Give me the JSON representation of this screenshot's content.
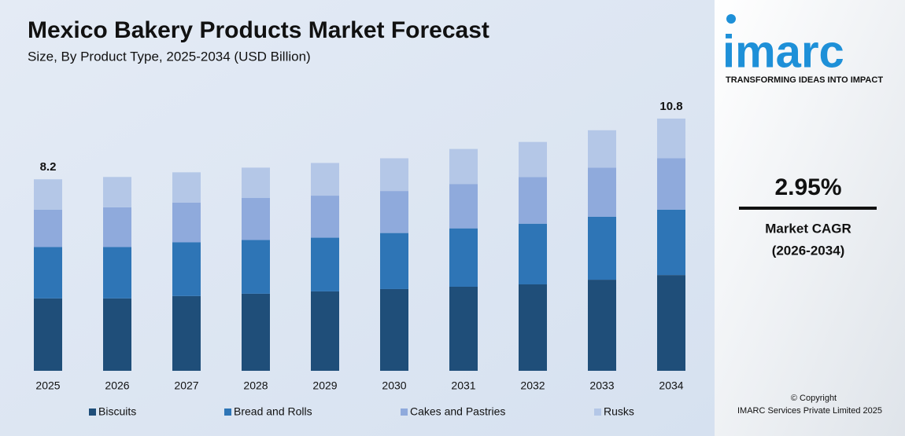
{
  "chart_data": {
    "type": "bar",
    "stacked": true,
    "title": "Mexico Bakery Products Market Forecast",
    "subtitle": "Size, By Product Type, 2025-2034 (USD Billion)",
    "categories": [
      "2025",
      "2026",
      "2027",
      "2028",
      "2029",
      "2030",
      "2031",
      "2032",
      "2033",
      "2034"
    ],
    "series": [
      {
        "name": "Biscuits",
        "color": "#1f4e79",
        "values": [
          3.1,
          3.1,
          3.2,
          3.3,
          3.4,
          3.5,
          3.6,
          3.7,
          3.9,
          4.1
        ]
      },
      {
        "name": "Bread and Rolls",
        "color": "#2e75b6",
        "values": [
          2.2,
          2.2,
          2.3,
          2.3,
          2.3,
          2.4,
          2.5,
          2.6,
          2.7,
          2.8
        ]
      },
      {
        "name": "Cakes and Pastries",
        "color": "#8faadc",
        "values": [
          1.6,
          1.7,
          1.7,
          1.8,
          1.8,
          1.8,
          1.9,
          2.0,
          2.1,
          2.2
        ]
      },
      {
        "name": "Rusks",
        "color": "#b4c7e7",
        "values": [
          1.3,
          1.3,
          1.3,
          1.3,
          1.4,
          1.4,
          1.5,
          1.5,
          1.6,
          1.7
        ]
      }
    ],
    "ylim": [
      0,
      11
    ],
    "annotations": [
      {
        "x": "2025",
        "text": "8.2"
      },
      {
        "x": "2034",
        "text": "10.8"
      }
    ],
    "legend": "bottom"
  },
  "sidebar": {
    "logo": "imarc",
    "tagline": "TRANSFORMING IDEAS INTO IMPACT",
    "cagr_value": "2.95%",
    "cagr_label": "Market CAGR",
    "cagr_period": "(2026-2034)",
    "copyright": "© Copyright",
    "copyright_holder": "IMARC Services Private Limited 2025"
  }
}
